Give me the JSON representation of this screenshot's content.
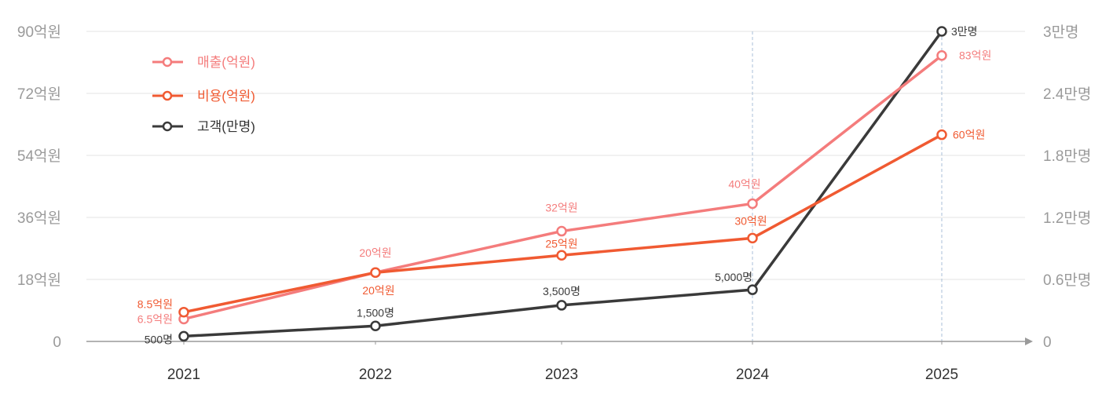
{
  "chart_data": {
    "type": "line",
    "title": "",
    "categories": [
      "2021",
      "2022",
      "2023",
      "2024",
      "2025"
    ],
    "y_left": {
      "ylim": [
        0,
        90
      ],
      "tick_labels": [
        "0",
        "18억원",
        "36억원",
        "54억원",
        "72억원",
        "90억원"
      ],
      "tick_values": [
        0,
        18,
        36,
        54,
        72,
        90
      ]
    },
    "y_right": {
      "ylim": [
        0,
        3
      ],
      "tick_labels": [
        "0",
        "0.6만명",
        "1.2만명",
        "1.8만명",
        "2.4만명",
        "3만명"
      ],
      "tick_values": [
        0,
        0.6,
        1.2,
        1.8,
        2.4,
        3
      ]
    },
    "grid": true,
    "legend_position": "top-left",
    "highlight_categories": [
      "2024",
      "2025"
    ],
    "series": [
      {
        "name": "매출(억원)",
        "axis": "left",
        "color": "#f47c7c",
        "values": [
          6.5,
          20,
          32,
          40,
          83
        ],
        "labels": [
          "6.5억원",
          "20억원",
          "32억원",
          "40억원",
          "83억원"
        ]
      },
      {
        "name": "비용(억원)",
        "axis": "left",
        "color": "#f05a32",
        "values": [
          8.5,
          20,
          25,
          30,
          60
        ],
        "labels": [
          "8.5억원",
          "20억원",
          "25억원",
          "30억원",
          "60억원"
        ]
      },
      {
        "name": "고객(만명)",
        "axis": "right",
        "color": "#3a3a3a",
        "values": [
          0.05,
          0.15,
          0.35,
          0.5,
          3
        ],
        "labels": [
          "500명",
          "1,500명",
          "3,500명",
          "5,000명",
          "3만명"
        ]
      }
    ]
  }
}
